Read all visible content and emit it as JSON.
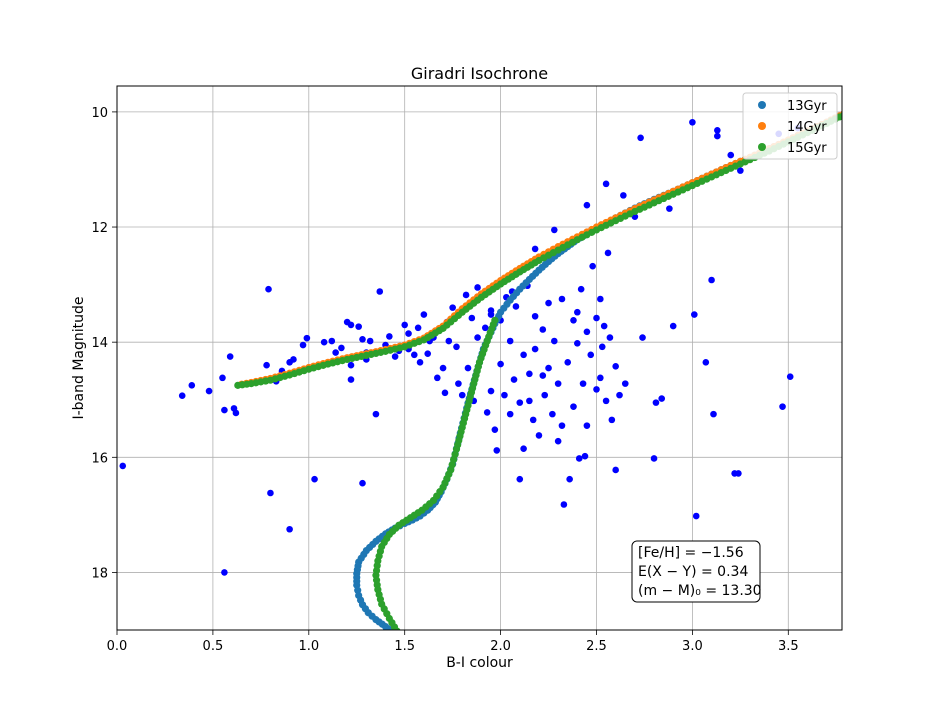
{
  "chart_data": {
    "type": "scatter",
    "title": "Giradri Isochrone",
    "xlabel": "B-I colour",
    "ylabel": "I-band Magnitude",
    "xlim": [
      0.0,
      3.78
    ],
    "ylim": [
      19.0,
      9.55
    ],
    "y_inverted": true,
    "grid": true,
    "xticks": [
      "0.0",
      "0.5",
      "1.0",
      "1.5",
      "2.0",
      "2.5",
      "3.0",
      "3.5"
    ],
    "yticks": [
      "10",
      "12",
      "14",
      "16",
      "18"
    ],
    "legend_position": "top-right",
    "observed": {
      "color": "#0000ff",
      "points": [
        [
          0.03,
          16.15
        ],
        [
          0.56,
          18.0
        ],
        [
          0.34,
          14.93
        ],
        [
          0.39,
          14.75
        ],
        [
          0.48,
          14.85
        ],
        [
          0.55,
          14.62
        ],
        [
          0.56,
          15.18
        ],
        [
          0.59,
          14.25
        ],
        [
          0.61,
          15.15
        ],
        [
          0.62,
          15.23
        ],
        [
          0.79,
          13.08
        ],
        [
          0.8,
          16.62
        ],
        [
          0.83,
          14.68
        ],
        [
          0.78,
          14.4
        ],
        [
          0.86,
          14.5
        ],
        [
          0.9,
          14.35
        ],
        [
          0.92,
          14.3
        ],
        [
          0.9,
          17.25
        ],
        [
          0.97,
          14.05
        ],
        [
          0.99,
          13.93
        ],
        [
          1.03,
          16.38
        ],
        [
          1.08,
          14.0
        ],
        [
          1.12,
          13.98
        ],
        [
          1.14,
          14.18
        ],
        [
          1.17,
          14.1
        ],
        [
          1.2,
          13.65
        ],
        [
          1.22,
          13.7
        ],
        [
          1.22,
          14.4
        ],
        [
          1.26,
          13.73
        ],
        [
          1.28,
          13.95
        ],
        [
          1.3,
          14.18
        ],
        [
          1.32,
          13.98
        ],
        [
          1.3,
          14.3
        ],
        [
          1.22,
          14.65
        ],
        [
          1.35,
          15.25
        ],
        [
          1.37,
          13.12
        ],
        [
          1.28,
          16.45
        ],
        [
          1.4,
          14.05
        ],
        [
          1.42,
          13.9
        ],
        [
          1.45,
          14.25
        ],
        [
          1.47,
          14.15
        ],
        [
          1.5,
          13.7
        ],
        [
          1.52,
          13.85
        ],
        [
          1.52,
          14.12
        ],
        [
          1.55,
          14.22
        ],
        [
          1.57,
          13.75
        ],
        [
          1.58,
          14.35
        ],
        [
          1.6,
          13.52
        ],
        [
          1.62,
          14.2
        ],
        [
          1.63,
          13.98
        ],
        [
          1.65,
          13.92
        ],
        [
          1.67,
          14.62
        ],
        [
          1.68,
          13.8
        ],
        [
          1.7,
          14.45
        ],
        [
          1.72,
          13.65
        ],
        [
          1.71,
          14.88
        ],
        [
          1.73,
          13.98
        ],
        [
          1.75,
          13.4
        ],
        [
          1.77,
          14.08
        ],
        [
          1.78,
          14.72
        ],
        [
          1.8,
          13.48
        ],
        [
          1.8,
          14.92
        ],
        [
          1.82,
          13.18
        ],
        [
          1.83,
          14.45
        ],
        [
          1.85,
          13.58
        ],
        [
          1.86,
          15.02
        ],
        [
          1.88,
          13.05
        ],
        [
          1.88,
          13.92
        ],
        [
          1.9,
          14.25
        ],
        [
          1.92,
          13.75
        ],
        [
          1.93,
          15.22
        ],
        [
          1.95,
          13.45
        ],
        [
          1.95,
          14.85
        ],
        [
          1.97,
          13.02
        ],
        [
          1.97,
          15.52
        ],
        [
          1.98,
          15.88
        ],
        [
          2.0,
          13.62
        ],
        [
          2.0,
          14.38
        ],
        [
          2.02,
          14.92
        ],
        [
          2.03,
          13.22
        ],
        [
          2.05,
          13.98
        ],
        [
          2.05,
          15.25
        ],
        [
          2.07,
          14.65
        ],
        [
          2.08,
          13.38
        ],
        [
          2.1,
          15.05
        ],
        [
          2.1,
          16.38
        ],
        [
          2.12,
          14.22
        ],
        [
          2.12,
          15.85
        ],
        [
          2.14,
          13.02
        ],
        [
          2.15,
          14.55
        ],
        [
          2.17,
          15.35
        ],
        [
          2.18,
          13.55
        ],
        [
          2.18,
          14.12
        ],
        [
          2.2,
          15.62
        ],
        [
          2.22,
          13.78
        ],
        [
          2.23,
          14.92
        ],
        [
          2.25,
          13.32
        ],
        [
          2.25,
          14.45
        ],
        [
          2.27,
          15.25
        ],
        [
          2.28,
          13.98
        ],
        [
          2.3,
          14.72
        ],
        [
          2.32,
          13.25
        ],
        [
          2.32,
          15.45
        ],
        [
          2.33,
          16.82
        ],
        [
          2.35,
          14.35
        ],
        [
          2.36,
          16.38
        ],
        [
          2.38,
          13.62
        ],
        [
          2.38,
          15.12
        ],
        [
          2.4,
          14.02
        ],
        [
          2.41,
          16.02
        ],
        [
          2.42,
          13.08
        ],
        [
          2.43,
          14.72
        ],
        [
          2.45,
          13.82
        ],
        [
          2.45,
          15.45
        ],
        [
          2.47,
          14.22
        ],
        [
          2.48,
          12.68
        ],
        [
          2.5,
          13.58
        ],
        [
          2.5,
          14.82
        ],
        [
          2.52,
          13.25
        ],
        [
          2.53,
          14.08
        ],
        [
          2.55,
          15.02
        ],
        [
          2.56,
          12.45
        ],
        [
          2.57,
          13.92
        ],
        [
          2.58,
          15.35
        ],
        [
          2.6,
          14.42
        ],
        [
          2.6,
          16.22
        ],
        [
          2.62,
          14.92
        ],
        [
          2.65,
          14.72
        ],
        [
          2.7,
          11.82
        ],
        [
          2.73,
          10.45
        ],
        [
          2.74,
          13.92
        ],
        [
          2.8,
          16.02
        ],
        [
          2.81,
          15.05
        ],
        [
          2.84,
          14.98
        ],
        [
          2.9,
          13.72
        ],
        [
          3.01,
          13.52
        ],
        [
          3.02,
          17.02
        ],
        [
          3.07,
          14.35
        ],
        [
          3.1,
          12.92
        ],
        [
          3.11,
          15.25
        ],
        [
          3.0,
          10.18
        ],
        [
          3.13,
          10.32
        ],
        [
          3.13,
          10.42
        ],
        [
          3.22,
          16.28
        ],
        [
          3.24,
          16.28
        ],
        [
          3.47,
          15.12
        ],
        [
          3.51,
          14.6
        ],
        [
          3.55,
          10.28
        ],
        [
          3.45,
          10.38
        ],
        [
          3.2,
          10.75
        ],
        [
          3.25,
          11.02
        ],
        [
          2.55,
          11.25
        ],
        [
          2.64,
          11.45
        ],
        [
          2.88,
          11.68
        ],
        [
          2.45,
          11.62
        ],
        [
          2.28,
          12.05
        ],
        [
          2.21,
          12.52
        ],
        [
          2.18,
          12.38
        ],
        [
          2.35,
          12.28
        ],
        [
          2.06,
          13.12
        ],
        [
          1.95,
          13.52
        ],
        [
          2.4,
          13.48
        ],
        [
          2.54,
          13.72
        ],
        [
          2.22,
          14.58
        ],
        [
          2.15,
          15.02
        ],
        [
          2.3,
          15.72
        ],
        [
          2.52,
          14.62
        ],
        [
          2.44,
          15.98
        ]
      ]
    },
    "series": [
      {
        "name": "13Gyr",
        "color": "#1f77b4",
        "x": [
          3.79,
          3.7,
          3.6,
          3.5,
          3.4,
          3.3,
          3.2,
          3.1,
          3.0,
          2.9,
          2.8,
          2.7,
          2.6,
          2.5,
          2.45,
          2.4,
          2.35,
          2.3,
          2.25,
          2.2,
          2.15,
          2.1,
          2.05,
          2.0,
          1.97,
          1.94,
          1.91,
          1.89,
          1.87,
          1.85,
          1.83,
          1.81,
          1.79,
          1.77,
          1.75,
          1.72,
          1.69,
          1.66,
          1.62,
          1.58,
          1.54,
          1.5,
          1.45,
          1.4,
          1.35,
          1.3,
          1.26,
          1.25,
          1.25,
          1.26,
          1.28,
          1.31,
          1.35,
          1.4,
          1.43
        ],
        "y": [
          10.03,
          10.18,
          10.33,
          10.49,
          10.64,
          10.79,
          10.93,
          11.08,
          11.23,
          11.38,
          11.52,
          11.67,
          11.84,
          12.02,
          12.12,
          12.22,
          12.34,
          12.46,
          12.6,
          12.75,
          12.91,
          13.08,
          13.27,
          13.48,
          13.68,
          13.9,
          14.12,
          14.35,
          14.58,
          14.82,
          15.06,
          15.32,
          15.58,
          15.85,
          16.12,
          16.38,
          16.6,
          16.78,
          16.92,
          17.02,
          17.09,
          17.15,
          17.23,
          17.33,
          17.46,
          17.62,
          17.82,
          18.02,
          18.22,
          18.4,
          18.56,
          18.7,
          18.82,
          18.94,
          19.02
        ]
      },
      {
        "name": "14Gyr",
        "color": "#ff7f0e",
        "x": [
          3.79,
          3.7,
          3.6,
          3.5,
          3.4,
          3.3,
          3.2,
          3.1,
          3.0,
          2.9,
          2.8,
          2.7,
          2.6,
          2.5,
          2.4,
          2.3,
          2.2,
          2.1,
          2.0,
          1.9,
          1.8,
          1.7,
          1.6,
          1.5,
          1.4,
          1.3,
          1.2,
          1.1,
          1.0,
          0.9,
          0.8,
          0.7,
          0.65
        ],
        "y": [
          10.03,
          10.18,
          10.33,
          10.49,
          10.64,
          10.79,
          10.93,
          11.08,
          11.23,
          11.38,
          11.53,
          11.68,
          11.84,
          12.0,
          12.17,
          12.34,
          12.52,
          12.72,
          12.93,
          13.16,
          13.42,
          13.72,
          13.93,
          14.05,
          14.13,
          14.2,
          14.27,
          14.35,
          14.44,
          14.54,
          14.63,
          14.7,
          14.73
        ]
      },
      {
        "name": "15Gyr",
        "color": "#2ca02c",
        "x": [
          3.79,
          3.7,
          3.6,
          3.5,
          3.4,
          3.3,
          3.2,
          3.1,
          3.0,
          2.9,
          2.8,
          2.7,
          2.6,
          2.5,
          2.4,
          2.3,
          2.2,
          2.1,
          2.0,
          1.9,
          1.8,
          1.7,
          1.6,
          1.5,
          1.4,
          1.3,
          1.2,
          1.1,
          1.0,
          0.9,
          0.8,
          0.7,
          0.63,
          1.97,
          1.93,
          1.89,
          1.86,
          1.83,
          1.8,
          1.77,
          1.74,
          1.7,
          1.65,
          1.59,
          1.53,
          1.47,
          1.42,
          1.38,
          1.36,
          1.35,
          1.36,
          1.38,
          1.42,
          1.46
        ],
        "y": [
          10.05,
          10.2,
          10.36,
          10.52,
          10.68,
          10.83,
          10.98,
          11.13,
          11.28,
          11.43,
          11.58,
          11.73,
          11.89,
          12.05,
          12.22,
          12.4,
          12.58,
          12.78,
          12.99,
          13.22,
          13.48,
          13.76,
          13.96,
          14.08,
          14.16,
          14.23,
          14.3,
          14.38,
          14.47,
          14.57,
          14.66,
          14.72,
          14.75,
          13.62,
          13.98,
          14.35,
          14.72,
          15.1,
          15.48,
          15.86,
          16.22,
          16.52,
          16.75,
          16.92,
          17.05,
          17.18,
          17.34,
          17.55,
          17.8,
          18.05,
          18.3,
          18.55,
          18.8,
          19.02
        ]
      }
    ],
    "annotation": {
      "lines": [
        "[Fe/H] = −1.56",
        "E(X − Y) = 0.34",
        "(m − M)₀ = 13.30"
      ]
    }
  }
}
